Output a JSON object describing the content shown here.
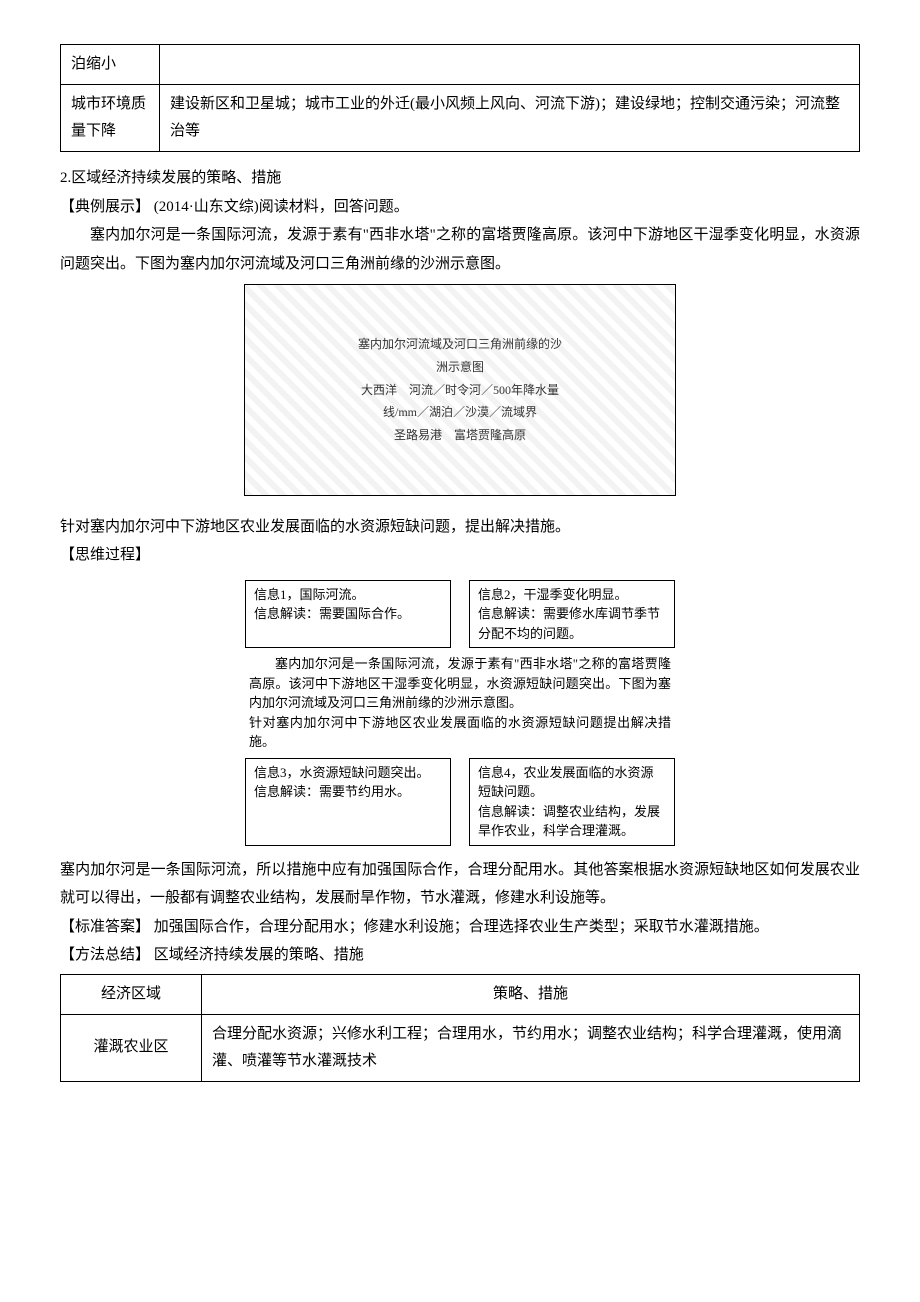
{
  "top_table": {
    "rows": [
      {
        "label": "泊缩小",
        "content": ""
      },
      {
        "label": "城市环境质量下降",
        "content": "建设新区和卫星城；城市工业的外迁(最小风频上风向、河流下游)；建设绿地；控制交通污染；河流整治等"
      }
    ]
  },
  "section2": {
    "heading": "2.区域经济持续发展的策略、措施",
    "example_label": "【典例展示】",
    "example_source": "(2014·山东文综)阅读材料，回答问题。",
    "intro_para": "塞内加尔河是一条国际河流，发源于素有\"西非水塔\"之称的富塔贾隆高原。该河中下游地区干湿季变化明显，水资源问题突出。下图为塞内加尔河流域及河口三角洲前缘的沙洲示意图。",
    "map_alt": "塞内加尔河流域及河口三角洲前缘的沙洲示意图\n大西洋　河流／时令河／500年降水量线/mm／湖泊／沙漠／流域界\n圣路易港　富塔贾隆高原",
    "question": "针对塞内加尔河中下游地区农业发展面临的水资源短缺问题，提出解决措施。",
    "thinking_label": "【思维过程】",
    "flow": {
      "top_left": "信息1，国际河流。\n信息解读：需要国际合作。",
      "top_right": "信息2，干湿季变化明显。\n信息解读：需要修水库调节季节分配不均的问题。",
      "center": "塞内加尔河是一条国际河流，发源于素有\"西非水塔\"之称的富塔贾隆高原。该河中下游地区干湿季变化明显，水资源短缺问题突出。下图为塞内加尔河流域及河口三角洲前缘的沙洲示意图。\n针对塞内加尔河中下游地区农业发展面临的水资源短缺问题提出解决措施。",
      "bottom_left": "信息3，水资源短缺问题突出。\n信息解读：需要节约用水。",
      "bottom_right": "信息4，农业发展面临的水资源短缺问题。\n信息解读：调整农业结构，发展旱作农业，科学合理灌溉。"
    },
    "analysis_para": "塞内加尔河是一条国际河流，所以措施中应有加强国际合作，合理分配用水。其他答案根据水资源短缺地区如何发展农业就可以得出，一般都有调整农业结构，发展耐旱作物，节水灌溉，修建水利设施等。",
    "answer_label": "【标准答案】",
    "answer_text": "加强国际合作，合理分配用水；修建水利设施；合理选择农业生产类型；采取节水灌溉措施。",
    "method_label": "【方法总结】",
    "method_title": "区域经济持续发展的策略、措施",
    "strategy_table": {
      "col1_header": "经济区域",
      "col2_header": "策略、措施",
      "rows": [
        {
          "region": "灌溉农业区",
          "measures": "合理分配水资源；兴修水利工程；合理用水，节约用水；调整农业结构；科学合理灌溉，使用滴灌、喷灌等节水灌溉技术"
        }
      ]
    }
  }
}
